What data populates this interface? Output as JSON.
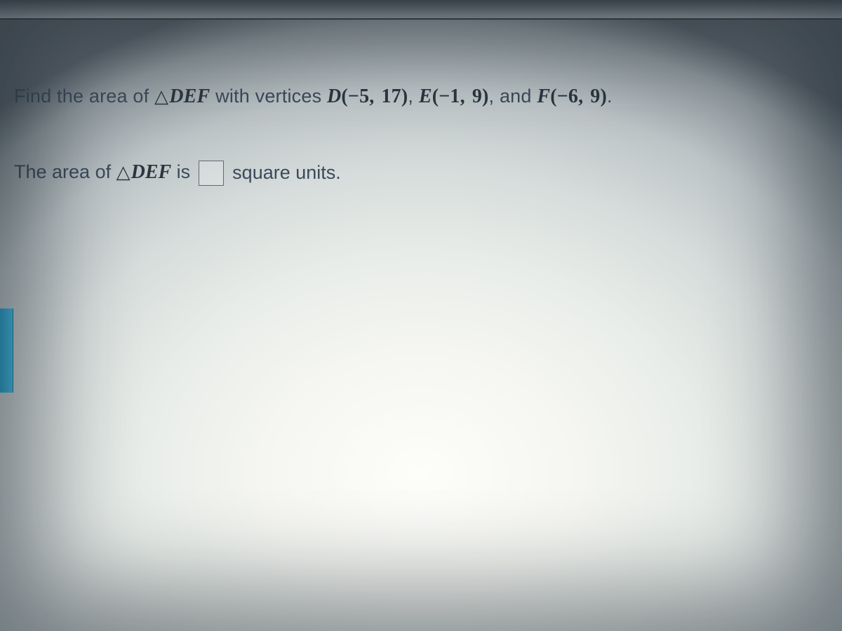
{
  "problem": {
    "prompt_lead": "Find the area of ",
    "triangle_symbol": "△",
    "triangle_name": "DEF",
    "with_vertices": " with vertices ",
    "vertices": [
      {
        "label": "D",
        "x": "−5",
        "y": "17"
      },
      {
        "label": "E",
        "x": "−1",
        "y": "9"
      },
      {
        "label": "F",
        "x": "−6",
        "y": "9"
      }
    ],
    "sep_comma": ", ",
    "sep_and": ", and ",
    "period": "."
  },
  "answer": {
    "lead": "The area of ",
    "triangle_symbol": "△",
    "triangle_name": "DEF",
    "is_text": " is",
    "units_text": "square units."
  },
  "style": {
    "text_color": "#3a4a5a",
    "math_color": "#2c3640",
    "accent_tab_color": "#2aa3d0",
    "topbar_color": "#4e555c",
    "background_center": "#fdfdfa",
    "background_edge": "#5a636b",
    "font_size_pt": 20,
    "math_font": "Times New Roman italic"
  }
}
